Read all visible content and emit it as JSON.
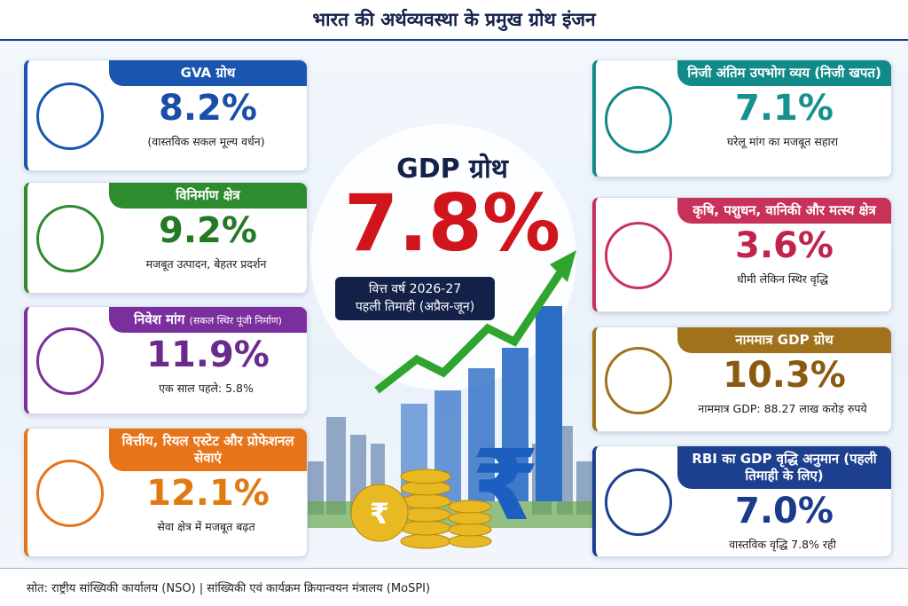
{
  "header": {
    "title": "भारत की अर्थव्यवस्था के प्रमुख ग्रोथ इंजन"
  },
  "center": {
    "label": "GDP ग्रोथ",
    "value": "7.8%",
    "period_lines": [
      "वित्त वर्ष 2026-27",
      "पहली तिमाही (अप्रैल-जून)"
    ]
  },
  "left_cards": [
    {
      "title": "GVA ग्रोथ",
      "value": "8.2%",
      "subtitle": "(वास्तविक सकल मूल्य वर्धन)"
    },
    {
      "title": "विनिर्माण क्षेत्र",
      "value": "9.2%",
      "subtitle": "मजबूत उत्पादन, बेहतर प्रदर्शन"
    },
    {
      "title": "निवेश मांग",
      "title_note": "(सकल स्थिर पूंजी निर्माण)",
      "value": "11.9%",
      "subtitle": "एक साल पहले: 5.8%"
    },
    {
      "title": "वित्तीय, रियल एस्टेट और प्रोफेशनल सेवाएं",
      "value": "12.1%",
      "subtitle": "सेवा क्षेत्र में मजबूत बढ़त"
    }
  ],
  "right_cards": [
    {
      "title": "निजी अंतिम उपभोग व्यय (निजी खपत)",
      "value": "7.1%",
      "subtitle": "घरेलू मांग का मजबूत सहारा"
    },
    {
      "title": "कृषि, पशुधन, वानिकी और मत्स्य क्षेत्र",
      "value": "3.6%",
      "subtitle": "धीमी लेकिन स्थिर वृद्धि"
    },
    {
      "title": "नाममात्र GDP ग्रोथ",
      "value": "10.3%",
      "subtitle": "नाममात्र GDP: 88.27 लाख करोड़ रुपये"
    },
    {
      "title": "RBI का GDP वृद्धि अनुमान (पहली तिमाही के लिए)",
      "value": "7.0%",
      "subtitle": "वास्तविक वृद्धि 7.8% रही"
    }
  ],
  "footer": {
    "source": "सोत: राष्ट्रीय सांख्यिकी कार्यालय (NSO) | सांख्यिकी एवं कार्यक्रम क्रियान्वयन मंत्रालय (MoSPI)"
  }
}
